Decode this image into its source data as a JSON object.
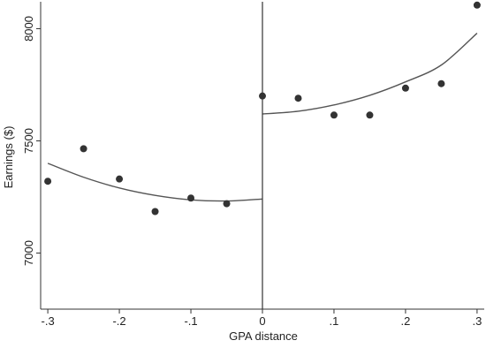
{
  "chart_data": {
    "type": "scatter",
    "title": "",
    "xlabel": "GPA distance",
    "ylabel": "Earnings ($)",
    "xlim": [
      -0.31,
      0.31
    ],
    "ylim": [
      6750,
      8120
    ],
    "grid": false,
    "cutoff_x": 0,
    "x_ticks": [
      {
        "value": -0.3,
        "label": "-.3"
      },
      {
        "value": -0.2,
        "label": "-.2"
      },
      {
        "value": -0.1,
        "label": "-.1"
      },
      {
        "value": 0,
        "label": "0"
      },
      {
        "value": 0.1,
        "label": ".1"
      },
      {
        "value": 0.2,
        "label": ".2"
      },
      {
        "value": 0.3,
        "label": ".3"
      }
    ],
    "y_ticks": [
      {
        "value": 7000,
        "label": "7000"
      },
      {
        "value": 7500,
        "label": "7500"
      },
      {
        "value": 8000,
        "label": "8000"
      }
    ],
    "points": [
      {
        "x": -0.3,
        "y": 7320
      },
      {
        "x": -0.25,
        "y": 7465
      },
      {
        "x": -0.2,
        "y": 7330
      },
      {
        "x": -0.15,
        "y": 7185
      },
      {
        "x": -0.1,
        "y": 7245
      },
      {
        "x": -0.05,
        "y": 7220
      },
      {
        "x": 0,
        "y": 7700
      },
      {
        "x": 0.05,
        "y": 7690
      },
      {
        "x": 0.1,
        "y": 7615
      },
      {
        "x": 0.15,
        "y": 7615
      },
      {
        "x": 0.2,
        "y": 7735
      },
      {
        "x": 0.25,
        "y": 7755
      },
      {
        "x": 0.3,
        "y": 8105
      }
    ],
    "fit_left": [
      {
        "x": -0.3,
        "y": 7400
      },
      {
        "x": -0.25,
        "y": 7338
      },
      {
        "x": -0.2,
        "y": 7290
      },
      {
        "x": -0.15,
        "y": 7257
      },
      {
        "x": -0.1,
        "y": 7237
      },
      {
        "x": -0.05,
        "y": 7232
      },
      {
        "x": 0,
        "y": 7241
      }
    ],
    "fit_right": [
      {
        "x": 0,
        "y": 7620
      },
      {
        "x": 0.05,
        "y": 7632
      },
      {
        "x": 0.1,
        "y": 7660
      },
      {
        "x": 0.15,
        "y": 7703
      },
      {
        "x": 0.2,
        "y": 7763
      },
      {
        "x": 0.25,
        "y": 7838
      },
      {
        "x": 0.3,
        "y": 7980
      }
    ],
    "colors": {
      "marker": "#333333",
      "line": "#555555",
      "axis": "#333333"
    }
  }
}
